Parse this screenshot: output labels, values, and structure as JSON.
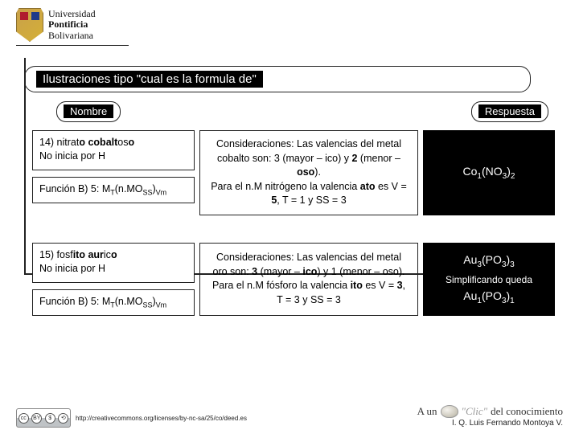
{
  "logo": {
    "line1": "Universidad",
    "line2": "Pontificia",
    "line3": "Bolivariana"
  },
  "section_title": "Ilustraciones tipo \"cual es la formula de\"",
  "labels": {
    "nombre": "Nombre",
    "respuesta": "Respuesta"
  },
  "rows": [
    {
      "name_html": "14) nitrat<span class='b'>o</span> <span class='b'>cobalt</span>os<span class='b'>o</span><br>No inicia por H",
      "func_html": "Función B) 5: M<sub>T</sub>(n.MO<sub>SS</sub>)<sub>Vm</sub>",
      "consid_html": "Consideraciones: Las valencias del metal cobalto son: 3 (mayor – ico) y <span class='b'>2</span> (menor – <span class='b'>oso</span>).<br>Para el n.M nitrógeno la valencia <span class='b'>ato</span> es V = <span class='b'>5</span>, T = 1 y SS = 3",
      "answer_html": "Co<sub>1</sub>(NO<sub>3</sub>)<sub>2</sub>"
    },
    {
      "name_html": "15) fosf<span class='b'>ito</span> <span class='b'>aur</span>ic<span class='b'>o</span><br>No inicia por H",
      "func_html": "Función B) 5: M<sub>T</sub>(n.MO<sub>SS</sub>)<sub>Vm</sub>",
      "consid_html": "Consideraciones: Las valencias del metal oro son: <span class='b'>3</span> (mayor – <span class='b'>ico</span>) y 1 (menor – oso).<br>Para el n.M fósforo la valencia <span class='b'>ito</span> es V = <span class='b'>3</span>, T = 3 y SS = 3",
      "answer_html": "Au<sub>3</sub>(PO<sub>3</sub>)<sub>3</sub><br><span style='font-size:12px'>Simplificando queda</span><br>Au<sub>1</sub>(PO<sub>3</sub>)<sub>1</sub>"
    }
  ],
  "footer": {
    "cc_url": "http://creativecommons.org/licenses/by-nc-sa/25/co/deed.es",
    "clic_prefix": "A un",
    "clic_word": "\"Clic\"",
    "clic_suffix": "del conocimiento",
    "author": "I. Q. Luis Fernando Montoya V."
  },
  "colors": {
    "bg": "#ffffff",
    "black": "#000000",
    "border": "#222222"
  }
}
